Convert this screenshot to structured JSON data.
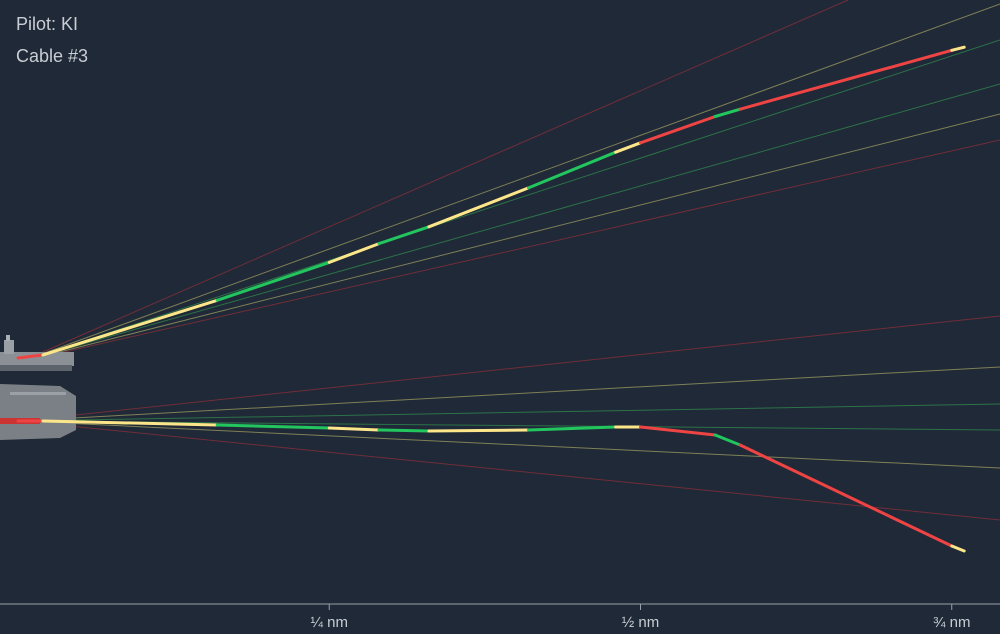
{
  "header": {
    "pilot": "Pilot: KI",
    "cable": "Cable #3"
  },
  "colors": {
    "background": "#1f2937",
    "good": "#22c55e",
    "ok": "#fde68a",
    "bad": "#ef4444",
    "guide_green": "#2f7a4a",
    "guide_yellow": "#8a8a5a",
    "guide_red": "#7a2e3a",
    "axis": "#9aa0a8"
  },
  "chart_data": {
    "type": "line",
    "title": "",
    "xlabel": "",
    "ylabel": "",
    "x_unit": "nm",
    "xlim": [
      0,
      0.78
    ],
    "x_ticks": [
      {
        "value": 0.25,
        "label": "¼ nm"
      },
      {
        "value": 0.5,
        "label": "½ nm"
      },
      {
        "value": 0.75,
        "label": "¾ nm"
      }
    ],
    "views": [
      {
        "name": "glideslope",
        "paths": [
          {
            "grade": "bad",
            "x": [
              0.0,
              0.02
            ],
            "y": [
              0.0,
              0.3
            ]
          },
          {
            "grade": "ok",
            "x": [
              0.02,
              0.16
            ],
            "y": [
              0.3,
              5.5
            ]
          },
          {
            "grade": "good",
            "x": [
              0.16,
              0.25
            ],
            "y": [
              5.5,
              9.1
            ]
          },
          {
            "grade": "ok",
            "x": [
              0.25,
              0.29
            ],
            "y": [
              9.1,
              10.9
            ]
          },
          {
            "grade": "good",
            "x": [
              0.29,
              0.33
            ],
            "y": [
              10.9,
              12.5
            ]
          },
          {
            "grade": "ok",
            "x": [
              0.33,
              0.41
            ],
            "y": [
              12.5,
              16.2
            ]
          },
          {
            "grade": "good",
            "x": [
              0.41,
              0.48
            ],
            "y": [
              16.2,
              19.6
            ]
          },
          {
            "grade": "ok",
            "x": [
              0.48,
              0.5
            ],
            "y": [
              19.6,
              20.5
            ]
          },
          {
            "grade": "bad",
            "x": [
              0.5,
              0.56
            ],
            "y": [
              20.5,
              23.0
            ]
          },
          {
            "grade": "good",
            "x": [
              0.56,
              0.58
            ],
            "y": [
              23.0,
              23.7
            ]
          },
          {
            "grade": "bad",
            "x": [
              0.58,
              0.75
            ],
            "y": [
              23.7,
              29.3
            ]
          },
          {
            "grade": "ok",
            "x": [
              0.75,
              0.76
            ],
            "y": [
              29.3,
              29.6
            ]
          }
        ]
      },
      {
        "name": "lineup",
        "paths": [
          {
            "grade": "bad",
            "x": [
              0.0,
              0.02
            ],
            "y": [
              0.0,
              0.0
            ]
          },
          {
            "grade": "ok",
            "x": [
              0.02,
              0.16
            ],
            "y": [
              0.0,
              -0.4
            ]
          },
          {
            "grade": "good",
            "x": [
              0.16,
              0.25
            ],
            "y": [
              -0.4,
              -0.7
            ]
          },
          {
            "grade": "ok",
            "x": [
              0.25,
              0.29
            ],
            "y": [
              -0.7,
              -0.9
            ]
          },
          {
            "grade": "good",
            "x": [
              0.29,
              0.33
            ],
            "y": [
              -0.9,
              -1.0
            ]
          },
          {
            "grade": "ok",
            "x": [
              0.33,
              0.41
            ],
            "y": [
              -1.0,
              -0.9
            ]
          },
          {
            "grade": "good",
            "x": [
              0.41,
              0.48
            ],
            "y": [
              -0.9,
              -0.6
            ]
          },
          {
            "grade": "ok",
            "x": [
              0.48,
              0.5
            ],
            "y": [
              -0.6,
              -0.6
            ]
          },
          {
            "grade": "bad",
            "x": [
              0.5,
              0.56
            ],
            "y": [
              -0.6,
              -1.4
            ]
          },
          {
            "grade": "good",
            "x": [
              0.56,
              0.58
            ],
            "y": [
              -1.4,
              -2.4
            ]
          },
          {
            "grade": "bad",
            "x": [
              0.58,
              0.75
            ],
            "y": [
              -2.4,
              -12.5
            ]
          },
          {
            "grade": "ok",
            "x": [
              0.75,
              0.76
            ],
            "y": [
              -12.5,
              -13.0
            ]
          }
        ]
      }
    ],
    "grid": false,
    "legend": "none"
  }
}
